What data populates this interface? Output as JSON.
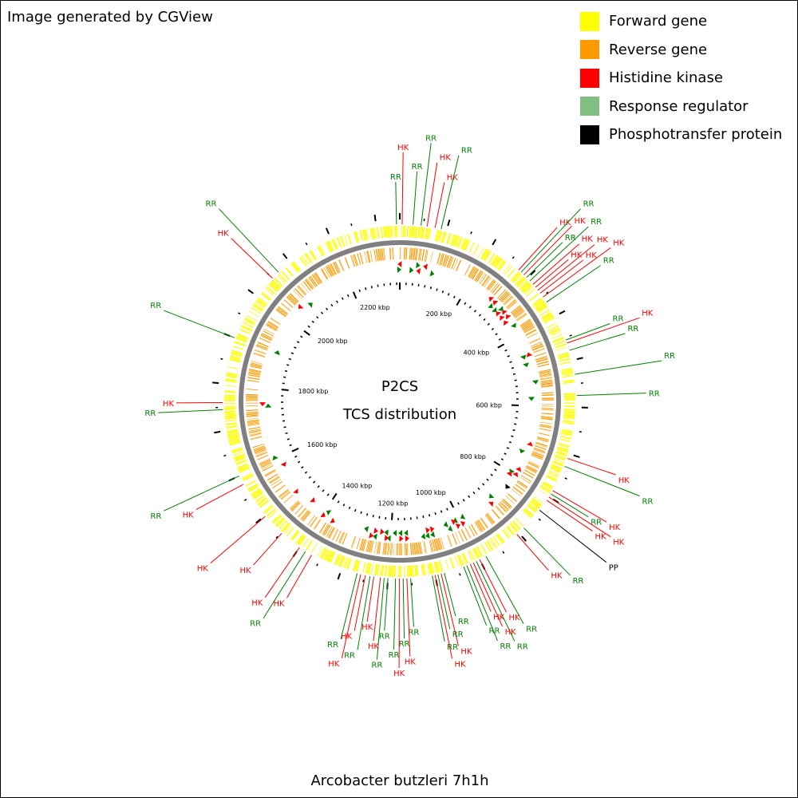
{
  "credit": "Image generated by CGView",
  "title_line1": "P2CS",
  "title_line2": "TCS distribution",
  "organism": "Arcobacter butzleri 7h1h",
  "genome_length_kbp": 2350,
  "legend": [
    {
      "label": "Forward gene",
      "color": "#ffff00"
    },
    {
      "label": "Reverse gene",
      "color": "#ff9900"
    },
    {
      "label": "Histidine kinase",
      "color": "#ff0000"
    },
    {
      "label": "Response regulator",
      "color": "#7fbf7f"
    },
    {
      "label": "Phosphotransfer protein",
      "color": "#000000"
    }
  ],
  "colors": {
    "HK": "#ff0000",
    "RR": "#008000",
    "PP": "#000000",
    "backbone": "#808080"
  },
  "tick_labels": [
    "200 kbp",
    "400 kbp",
    "600 kbp",
    "800 kbp",
    "1000 kbp",
    "1200 kbp",
    "1400 kbp",
    "1600 kbp",
    "1800 kbp",
    "2000 kbp",
    "2200 kbp"
  ],
  "tcs_features": [
    {
      "kbp": 2343,
      "type": "RR"
    },
    {
      "kbp": 5,
      "type": "HK"
    },
    {
      "kbp": 28,
      "type": "RR"
    },
    {
      "kbp": 45,
      "type": "RR"
    },
    {
      "kbp": 58,
      "type": "HK"
    },
    {
      "kbp": 75,
      "type": "HK"
    },
    {
      "kbp": 88,
      "type": "RR"
    },
    {
      "kbp": 275,
      "type": "HK"
    },
    {
      "kbp": 282,
      "type": "RR"
    },
    {
      "kbp": 290,
      "type": "HK"
    },
    {
      "kbp": 298,
      "type": "RR"
    },
    {
      "kbp": 308,
      "type": "RR"
    },
    {
      "kbp": 318,
      "type": "HK"
    },
    {
      "kbp": 326,
      "type": "HK"
    },
    {
      "kbp": 334,
      "type": "HK"
    },
    {
      "kbp": 342,
      "type": "HK"
    },
    {
      "kbp": 352,
      "type": "HK"
    },
    {
      "kbp": 365,
      "type": "RR"
    },
    {
      "kbp": 455,
      "type": "RR"
    },
    {
      "kbp": 462,
      "type": "HK"
    },
    {
      "kbp": 478,
      "type": "RR"
    },
    {
      "kbp": 530,
      "type": "RR"
    },
    {
      "kbp": 575,
      "type": "RR"
    },
    {
      "kbp": 710,
      "type": "HK"
    },
    {
      "kbp": 728,
      "type": "RR"
    },
    {
      "kbp": 785,
      "type": "HK"
    },
    {
      "kbp": 793,
      "type": "RR"
    },
    {
      "kbp": 801,
      "type": "HK"
    },
    {
      "kbp": 809,
      "type": "HK"
    },
    {
      "kbp": 835,
      "type": "PP"
    },
    {
      "kbp": 885,
      "type": "RR"
    },
    {
      "kbp": 905,
      "type": "HK"
    },
    {
      "kbp": 985,
      "type": "RR"
    },
    {
      "kbp": 1000,
      "type": "HK"
    },
    {
      "kbp": 1008,
      "type": "RR"
    },
    {
      "kbp": 1015,
      "type": "HK"
    },
    {
      "kbp": 1022,
      "type": "HK"
    },
    {
      "kbp": 1030,
      "type": "RR"
    },
    {
      "kbp": 1037,
      "type": "RR"
    },
    {
      "kbp": 1080,
      "type": "RR"
    },
    {
      "kbp": 1087,
      "type": "HK"
    },
    {
      "kbp": 1094,
      "type": "RR"
    },
    {
      "kbp": 1100,
      "type": "HK"
    },
    {
      "kbp": 1106,
      "type": "RR"
    },
    {
      "kbp": 1152,
      "type": "RR"
    },
    {
      "kbp": 1160,
      "type": "HK"
    },
    {
      "kbp": 1168,
      "type": "RR"
    },
    {
      "kbp": 1176,
      "type": "HK"
    },
    {
      "kbp": 1184,
      "type": "RR"
    },
    {
      "kbp": 1200,
      "type": "RR"
    },
    {
      "kbp": 1208,
      "type": "RR"
    },
    {
      "kbp": 1216,
      "type": "HK"
    },
    {
      "kbp": 1230,
      "type": "HK"
    },
    {
      "kbp": 1238,
      "type": "RR"
    },
    {
      "kbp": 1248,
      "type": "HK"
    },
    {
      "kbp": 1258,
      "type": "HK"
    },
    {
      "kbp": 1266,
      "type": "RR"
    },
    {
      "kbp": 1370,
      "type": "HK"
    },
    {
      "kbp": 1385,
      "type": "RR"
    },
    {
      "kbp": 1400,
      "type": "HK"
    },
    {
      "kbp": 1448,
      "type": "HK"
    },
    {
      "kbp": 1498,
      "type": "HK"
    },
    {
      "kbp": 1580,
      "type": "HK"
    },
    {
      "kbp": 1600,
      "type": "RR"
    },
    {
      "kbp": 1745,
      "type": "RR"
    },
    {
      "kbp": 1760,
      "type": "HK"
    },
    {
      "kbp": 1900,
      "type": "RR"
    },
    {
      "kbp": 2050,
      "type": "HK"
    },
    {
      "kbp": 2068,
      "type": "RR"
    }
  ]
}
